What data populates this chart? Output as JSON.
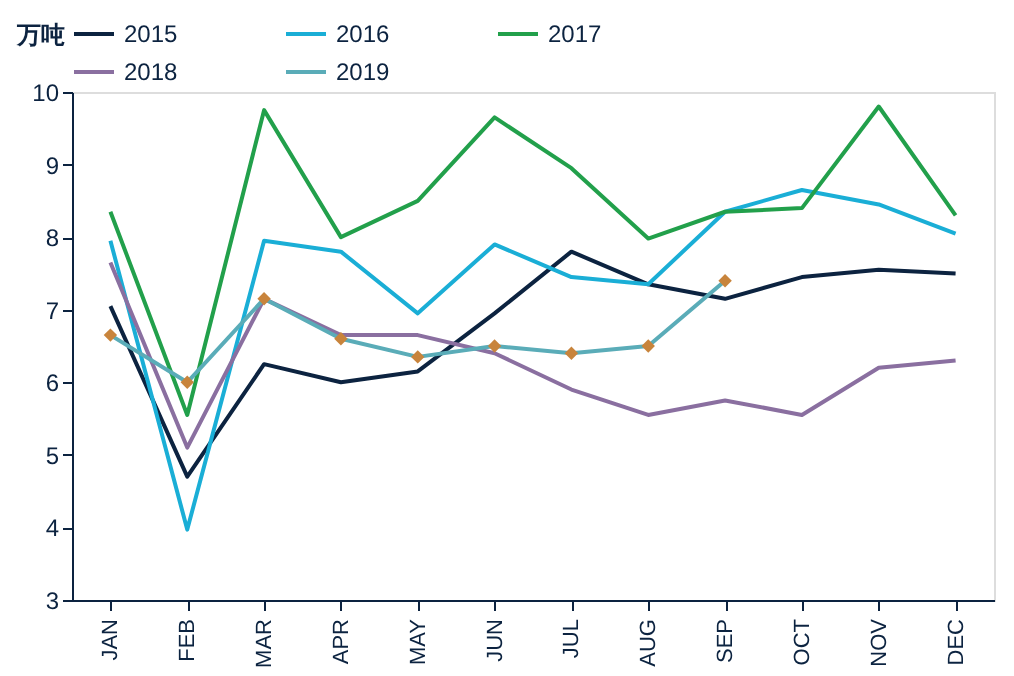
{
  "chart_data": {
    "type": "line",
    "ylabel": "万吨",
    "categories": [
      "JAN",
      "FEB",
      "MAR",
      "APR",
      "MAY",
      "JUN",
      "JUL",
      "AUG",
      "SEP",
      "OCT",
      "NOV",
      "DEC"
    ],
    "ylim": [
      3,
      10
    ],
    "yticks": [
      3,
      4,
      5,
      6,
      7,
      8,
      9,
      10
    ],
    "grid": false,
    "legend": "top",
    "marker": "none",
    "line_style": "solid",
    "series": [
      {
        "name": "2015",
        "color": "#0c2340",
        "values": [
          7.05,
          4.7,
          6.25,
          6.0,
          6.15,
          6.95,
          7.8,
          7.35,
          7.15,
          7.45,
          7.55,
          7.5
        ]
      },
      {
        "name": "2016",
        "color": "#1aaed6",
        "values": [
          7.95,
          3.97,
          7.95,
          7.8,
          6.95,
          7.9,
          7.45,
          7.35,
          8.35,
          8.65,
          8.45,
          8.05
        ]
      },
      {
        "name": "2017",
        "color": "#22a04b",
        "values": [
          8.35,
          5.55,
          9.75,
          8.0,
          8.5,
          9.65,
          8.95,
          7.98,
          8.35,
          8.4,
          9.8,
          8.3
        ]
      },
      {
        "name": "2018",
        "color": "#8a6fa0",
        "values": [
          7.65,
          5.1,
          7.15,
          6.65,
          6.65,
          6.4,
          5.9,
          5.55,
          5.75,
          5.55,
          6.2,
          6.3
        ]
      },
      {
        "name": "2019",
        "color": "#5aacb8",
        "marker": "diamond",
        "colors": [
          "#c8843c",
          "#c8843c",
          "#c8843c",
          "#c8843c",
          "#c8843c",
          "#c8843c",
          "#c8843c",
          "#c8843c",
          "#c8843c",
          null,
          null,
          null
        ],
        "values": [
          6.65,
          6.0,
          7.15,
          6.6,
          6.35,
          6.5,
          6.4,
          6.5,
          7.4,
          null,
          null,
          null
        ]
      }
    ]
  }
}
